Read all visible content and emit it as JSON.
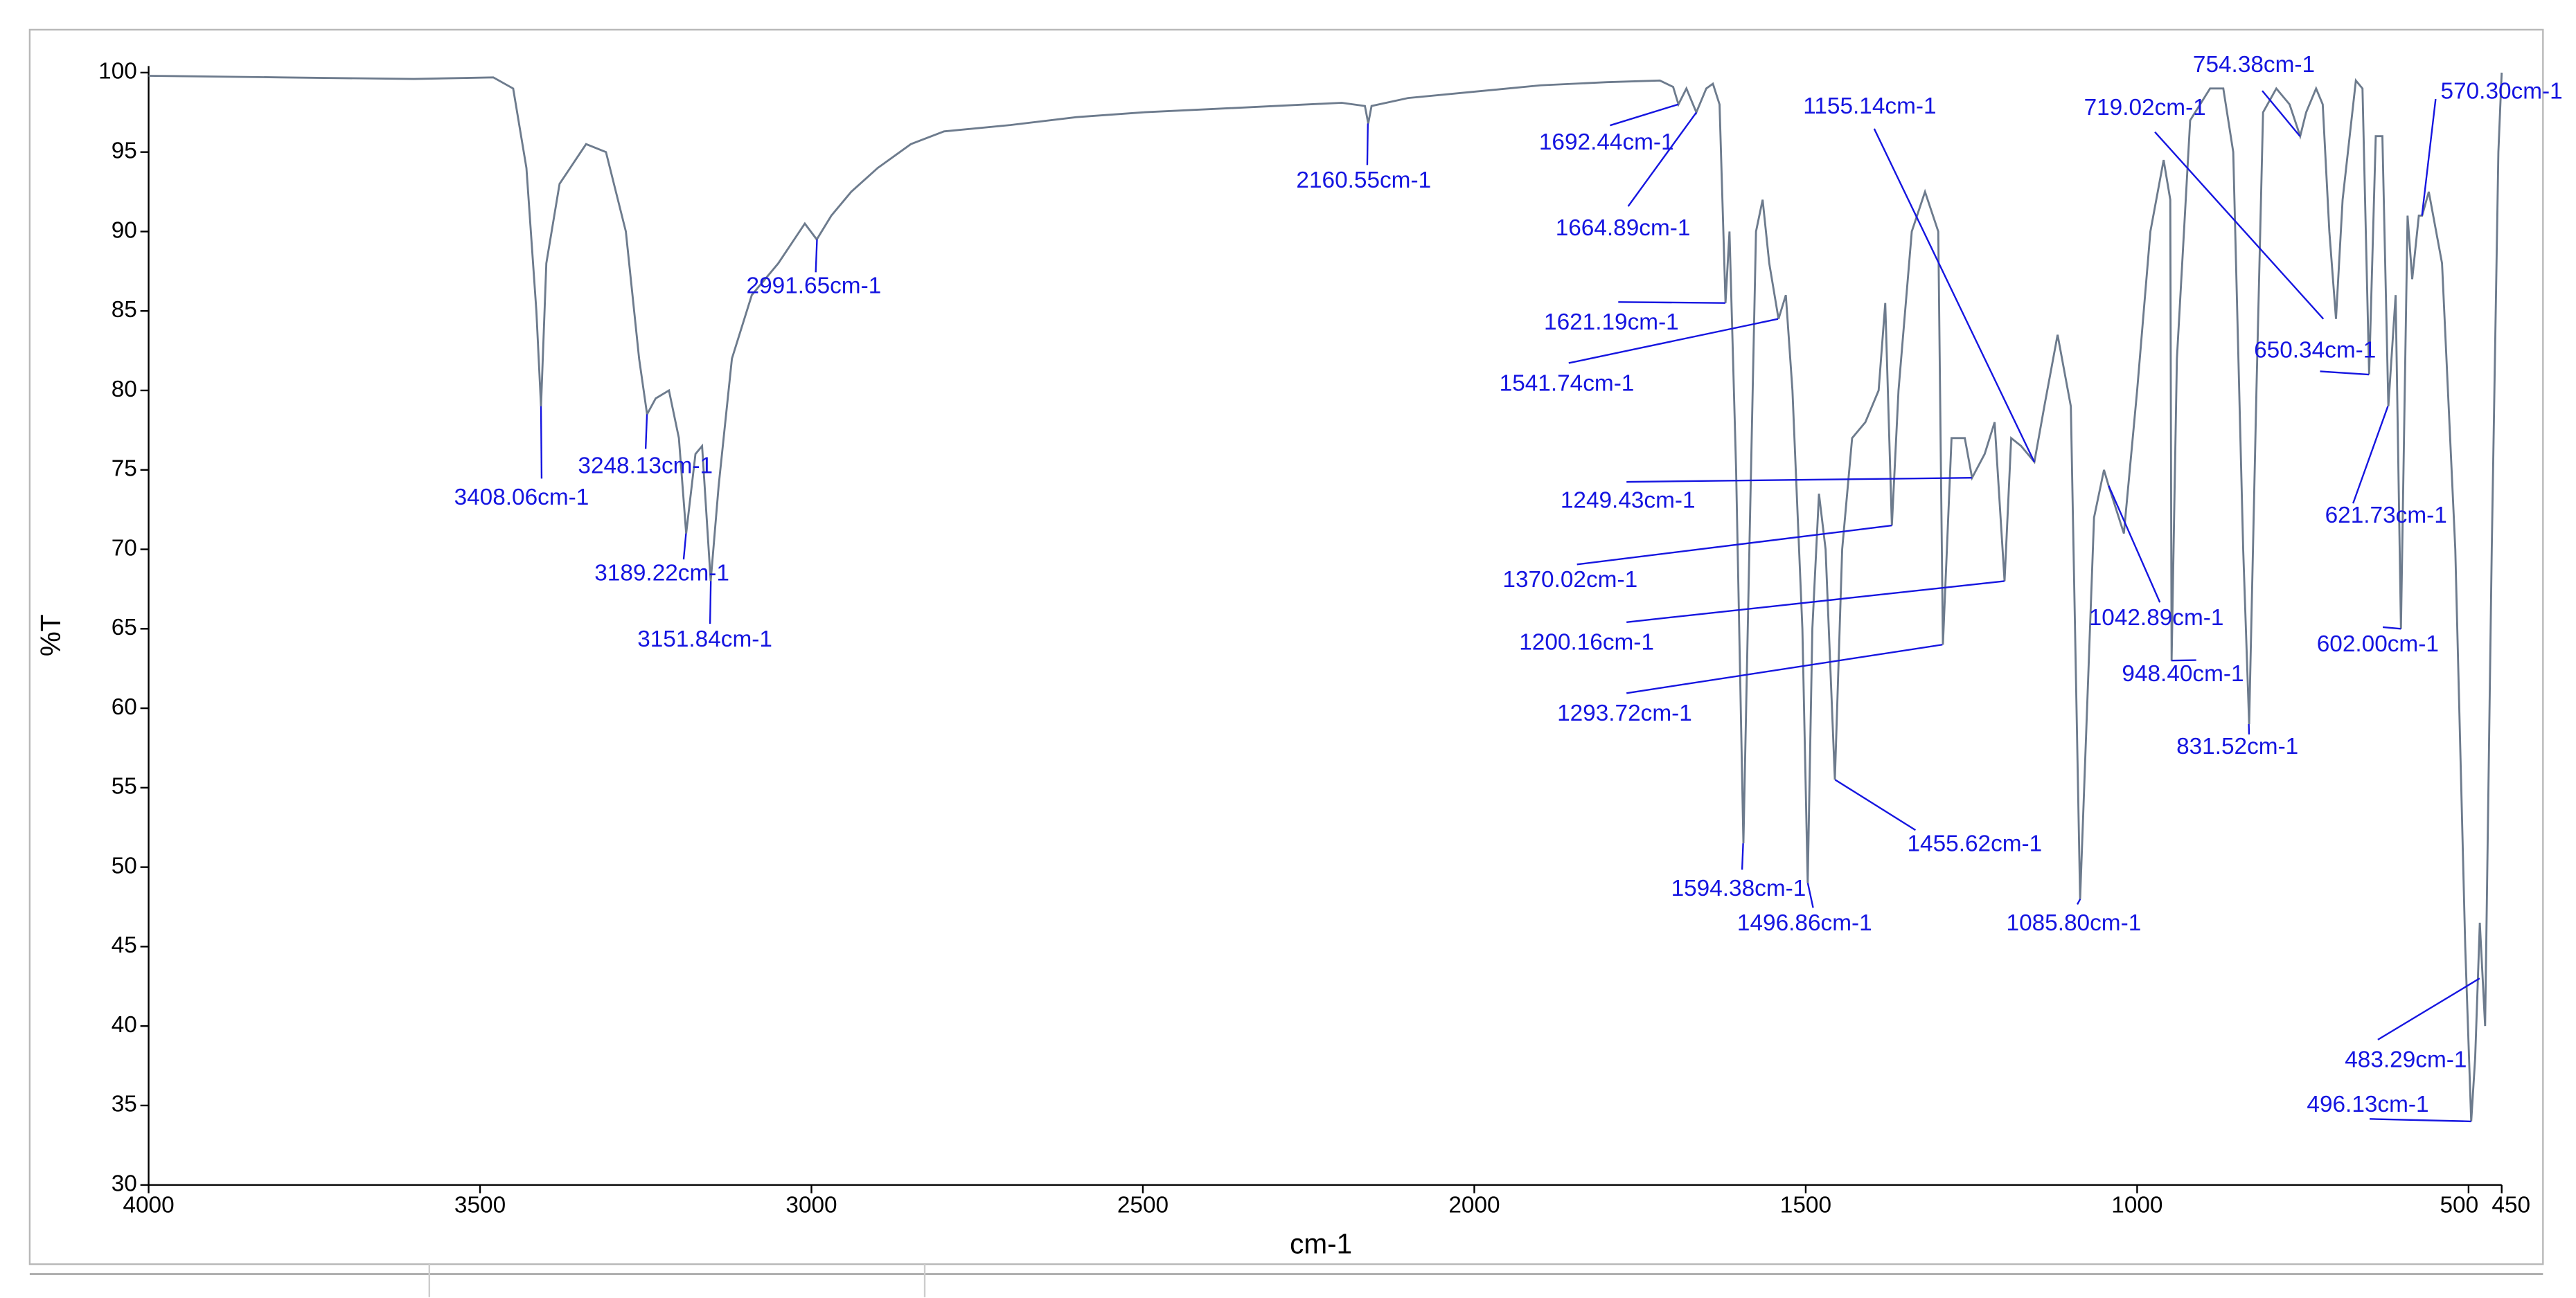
{
  "chart_data": {
    "type": "line",
    "xlabel": "cm-1",
    "ylabel": "%T",
    "xlim": [
      4000,
      450
    ],
    "ylim": [
      30,
      100
    ],
    "xticks": [
      4000,
      3500,
      3000,
      2500,
      2000,
      1500,
      1000,
      500,
      450
    ],
    "yticks": [
      30,
      35,
      40,
      45,
      50,
      55,
      60,
      65,
      70,
      75,
      80,
      85,
      90,
      95,
      100
    ],
    "series": [
      {
        "color": "#6d7b8d",
        "x": [
          4000,
          3800,
          3600,
          3480,
          3450,
          3430,
          3415,
          3408,
          3400,
          3380,
          3340,
          3310,
          3280,
          3260,
          3248,
          3235,
          3215,
          3200,
          3189,
          3175,
          3165,
          3152,
          3140,
          3120,
          3090,
          3050,
          3010,
          2992,
          2970,
          2940,
          2900,
          2850,
          2800,
          2700,
          2600,
          2500,
          2400,
          2300,
          2200,
          2165,
          2160,
          2155,
          2100,
          2000,
          1900,
          1800,
          1720,
          1700,
          1692,
          1680,
          1665,
          1650,
          1640,
          1630,
          1621,
          1615,
          1605,
          1594,
          1585,
          1575,
          1565,
          1555,
          1541,
          1530,
          1520,
          1505,
          1497,
          1490,
          1480,
          1470,
          1456,
          1445,
          1430,
          1410,
          1390,
          1380,
          1370,
          1360,
          1340,
          1320,
          1300,
          1293,
          1280,
          1260,
          1249,
          1230,
          1215,
          1200,
          1190,
          1175,
          1155,
          1140,
          1120,
          1100,
          1086,
          1065,
          1050,
          1043,
          1020,
          1000,
          980,
          960,
          950,
          948,
          940,
          920,
          890,
          870,
          855,
          840,
          831,
          820,
          810,
          790,
          770,
          754,
          745,
          730,
          720,
          710,
          700,
          690,
          670,
          660,
          650,
          640,
          630,
          621,
          610,
          602,
          592,
          585,
          575,
          570,
          560,
          540,
          520,
          505,
          496,
          490,
          483,
          475,
          465,
          455,
          450
        ],
        "values": [
          99.8,
          99.7,
          99.6,
          99.7,
          99,
          94,
          85,
          79,
          88,
          93,
          95.5,
          95,
          90,
          82,
          78.5,
          79.5,
          80,
          77,
          71,
          76,
          76.5,
          68,
          74,
          82,
          86,
          88,
          90.5,
          89.5,
          91,
          92.5,
          94,
          95.5,
          96.3,
          96.7,
          97.2,
          97.5,
          97.7,
          97.9,
          98.1,
          97.9,
          96.8,
          97.9,
          98.4,
          98.8,
          99.2,
          99.4,
          99.5,
          99.1,
          98,
          99,
          97.5,
          99,
          99.3,
          98,
          85.5,
          90,
          75,
          51.5,
          70,
          90,
          92,
          88,
          84.5,
          86,
          80,
          65,
          49,
          65,
          73.5,
          70,
          55.5,
          70,
          77,
          78,
          80,
          85.5,
          71.5,
          80,
          90,
          92.5,
          90,
          64,
          77,
          77,
          74.5,
          76,
          78,
          68,
          77,
          76.5,
          75.5,
          79,
          83.5,
          79,
          48,
          72,
          75,
          74,
          71,
          80,
          90,
          94.5,
          92,
          63,
          82,
          97,
          99,
          99,
          95,
          70,
          59,
          80,
          97.5,
          99,
          98,
          96,
          97.5,
          99,
          98,
          90,
          84.5,
          92,
          99.5,
          99,
          81,
          96,
          96,
          79,
          86,
          65,
          91,
          87,
          91,
          91,
          92.5,
          88,
          70,
          45,
          34,
          38,
          46.5,
          40,
          70,
          95,
          100
        ]
      }
    ],
    "annotations": [
      {
        "text": "3408.06cm-1",
        "x": 3408.06,
        "y": 79
      },
      {
        "text": "3248.13cm-1",
        "x": 3248.13,
        "y": 78.5
      },
      {
        "text": "3189.22cm-1",
        "x": 3189.22,
        "y": 71
      },
      {
        "text": "3151.84cm-1",
        "x": 3151.84,
        "y": 68
      },
      {
        "text": "2991.65cm-1",
        "x": 2991.65,
        "y": 89.5
      },
      {
        "text": "2160.55cm-1",
        "x": 2160.55,
        "y": 96.8
      },
      {
        "text": "1692.44cm-1",
        "x": 1692.44,
        "y": 98
      },
      {
        "text": "1664.89cm-1",
        "x": 1664.89,
        "y": 97.5
      },
      {
        "text": "1621.19cm-1",
        "x": 1621.19,
        "y": 85.5
      },
      {
        "text": "1541.74cm-1",
        "x": 1541.74,
        "y": 84.5
      },
      {
        "text": "1155.14cm-1",
        "x": 1155.14,
        "y": 75.5
      },
      {
        "text": "1249.43cm-1",
        "x": 1249.43,
        "y": 74.5
      },
      {
        "text": "1370.02cm-1",
        "x": 1370.02,
        "y": 71.5
      },
      {
        "text": "1200.16cm-1",
        "x": 1200.16,
        "y": 68
      },
      {
        "text": "1293.72cm-1",
        "x": 1293.72,
        "y": 64
      },
      {
        "text": "1594.38cm-1",
        "x": 1594.38,
        "y": 51.5
      },
      {
        "text": "1496.86cm-1",
        "x": 1496.86,
        "y": 49
      },
      {
        "text": "1455.62cm-1",
        "x": 1455.62,
        "y": 55.5
      },
      {
        "text": "1085.80cm-1",
        "x": 1085.8,
        "y": 48
      },
      {
        "text": "1042.89cm-1",
        "x": 1042.89,
        "y": 74
      },
      {
        "text": "948.40cm-1",
        "x": 948.4,
        "y": 63
      },
      {
        "text": "831.52cm-1",
        "x": 831.52,
        "y": 59
      },
      {
        "text": "754.38cm-1",
        "x": 754.38,
        "y": 96
      },
      {
        "text": "719.02cm-1",
        "x": 719.02,
        "y": 84.5
      },
      {
        "text": "650.34cm-1",
        "x": 650.34,
        "y": 81
      },
      {
        "text": "621.73cm-1",
        "x": 621.73,
        "y": 79
      },
      {
        "text": "602.00cm-1",
        "x": 602.0,
        "y": 65
      },
      {
        "text": "570.30cm-1",
        "x": 570.3,
        "y": 91
      },
      {
        "text": "483.29cm-1",
        "x": 483.29,
        "y": 43
      },
      {
        "text": "496.13cm-1",
        "x": 496.13,
        "y": 34
      }
    ]
  }
}
